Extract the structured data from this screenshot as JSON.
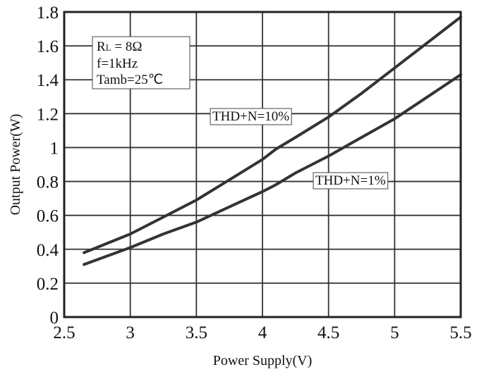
{
  "chart_data": {
    "type": "line",
    "xlabel": "Power Supply(V)",
    "ylabel": "Output Power(W)",
    "xlim": [
      2.5,
      5.5
    ],
    "ylim": [
      0,
      1.8
    ],
    "xticks": [
      "2.5",
      "3",
      "3.5",
      "4",
      "4.5",
      "5",
      "5.5"
    ],
    "yticks": [
      "0",
      "0.2",
      "0.4",
      "0.6",
      "0.8",
      "1",
      "1.2",
      "1.4",
      "1.6",
      "1.8"
    ],
    "grid": true,
    "legend": "none",
    "conditions": {
      "load": {
        "main": "R",
        "sub": "L",
        "rest": " = 8Ω"
      },
      "freq": "f=1kHz",
      "temp": "Tamb=25℃"
    },
    "series": [
      {
        "name": "THD+N=10%",
        "color": "#333333",
        "x": [
          2.65,
          3.0,
          3.25,
          3.5,
          3.75,
          4.0,
          4.1,
          4.25,
          4.5,
          4.75,
          5.0,
          5.25,
          5.5
        ],
        "y": [
          0.38,
          0.49,
          0.59,
          0.69,
          0.81,
          0.93,
          0.99,
          1.06,
          1.18,
          1.32,
          1.47,
          1.62,
          1.77
        ]
      },
      {
        "name": "THD+N=1%",
        "color": "#333333",
        "x": [
          2.65,
          3.0,
          3.25,
          3.5,
          3.75,
          4.0,
          4.1,
          4.25,
          4.5,
          4.75,
          5.0,
          5.25,
          5.5
        ],
        "y": [
          0.31,
          0.41,
          0.49,
          0.56,
          0.65,
          0.74,
          0.78,
          0.85,
          0.95,
          1.06,
          1.17,
          1.3,
          1.43
        ]
      }
    ]
  }
}
